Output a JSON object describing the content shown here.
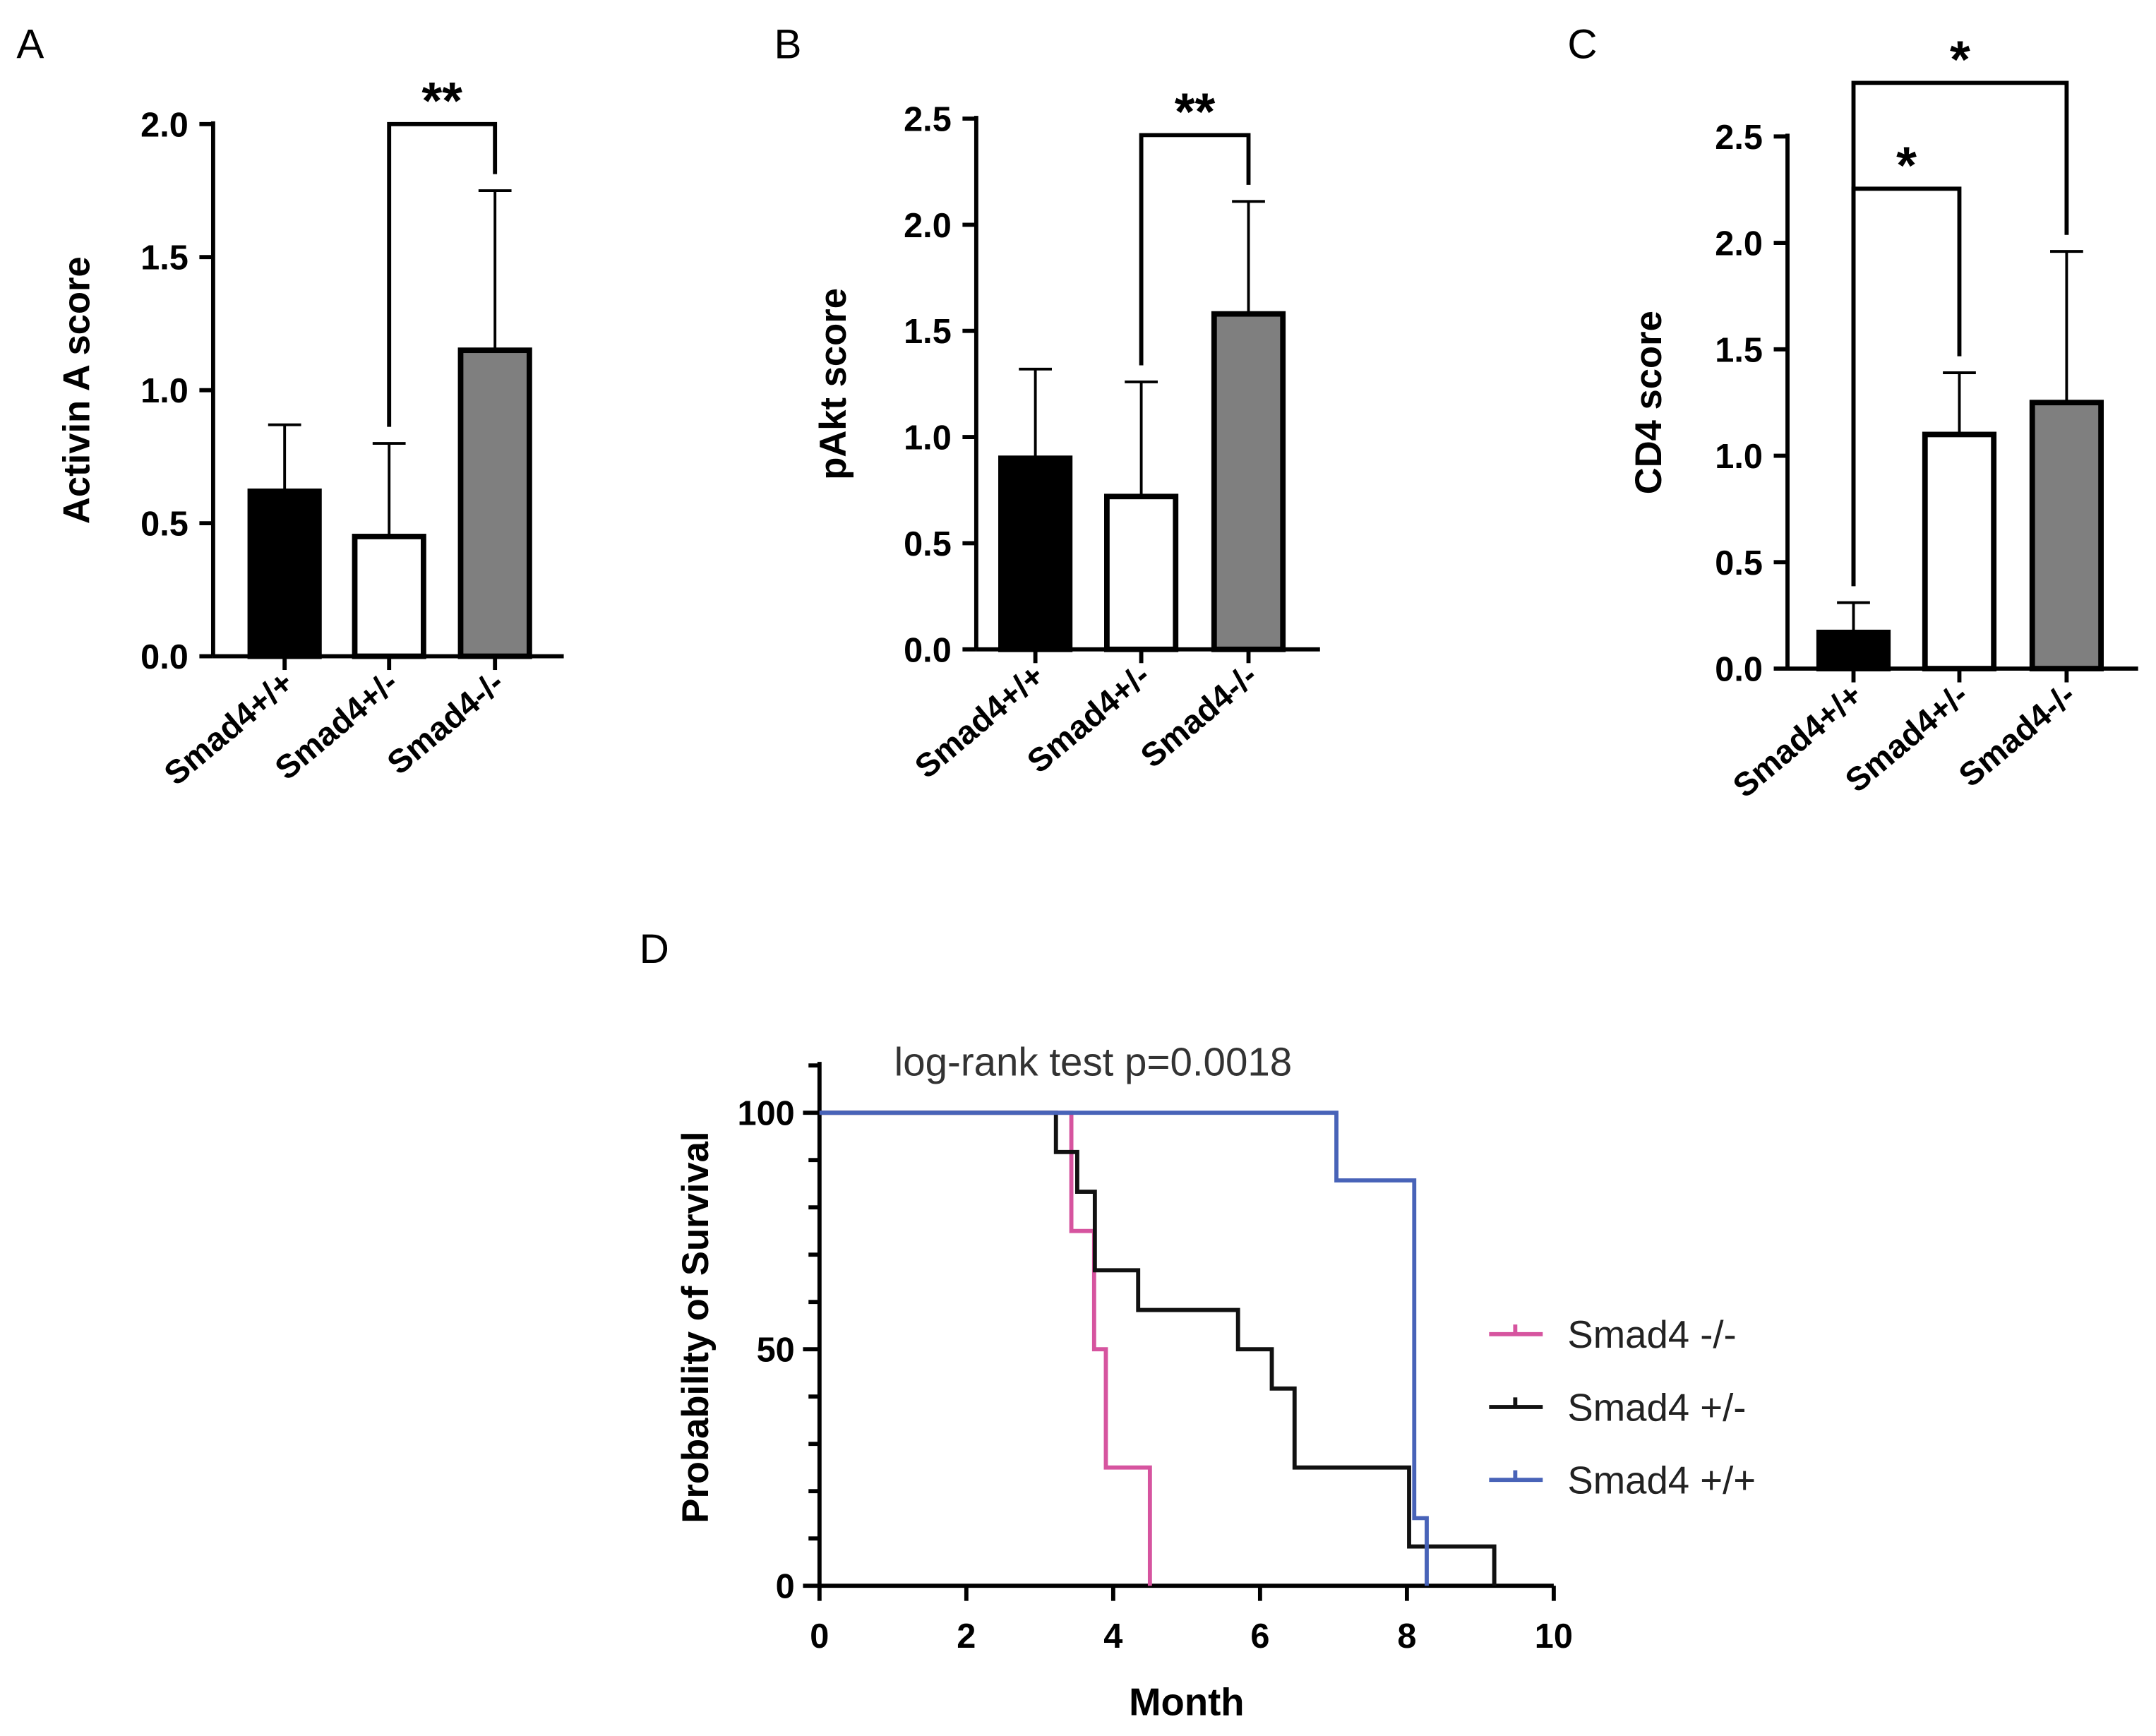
{
  "chart_data": [
    {
      "panel": "A",
      "type": "bar",
      "ylabel": "Activin A score",
      "ylim": [
        0,
        2.0
      ],
      "yticks": [
        0,
        0.5,
        1.0,
        1.5,
        2.0
      ],
      "ytick_labels": [
        "0.0",
        "0.5",
        "1.0",
        "1.5",
        "2.0"
      ],
      "categories": [
        "Smad4+/+",
        "Smad4+/-",
        "Smad4-/-"
      ],
      "values": [
        0.62,
        0.45,
        1.15
      ],
      "error_upper": [
        0.87,
        0.8,
        1.75
      ],
      "fills": [
        "#000000",
        "#ffffff",
        "#7f7f7f"
      ],
      "significance": [
        {
          "from": 1,
          "to": 2,
          "label": "**"
        }
      ]
    },
    {
      "panel": "B",
      "type": "bar",
      "ylabel": "pAkt score",
      "ylim": [
        0,
        2.5
      ],
      "yticks": [
        0,
        0.5,
        1.0,
        1.5,
        2.0,
        2.5
      ],
      "ytick_labels": [
        "0.0",
        "0.5",
        "1.0",
        "1.5",
        "2.0",
        "2.5"
      ],
      "categories": [
        "Smad4+/+",
        "Smad4+/-",
        "Smad4-/-"
      ],
      "values": [
        0.9,
        0.72,
        1.58
      ],
      "error_upper": [
        1.32,
        1.26,
        2.11
      ],
      "fills": [
        "#000000",
        "#ffffff",
        "#7f7f7f"
      ],
      "significance": [
        {
          "from": 1,
          "to": 2,
          "label": "**"
        }
      ]
    },
    {
      "panel": "C",
      "type": "bar",
      "ylabel": "CD4 score",
      "ylim": [
        0,
        2.5
      ],
      "yticks": [
        0,
        0.5,
        1.0,
        1.5,
        2.0,
        2.5
      ],
      "ytick_labels": [
        "0.0",
        "0.5",
        "1.0",
        "1.5",
        "2.0",
        "2.5"
      ],
      "categories": [
        "Smad4+/+",
        "Smad4+/-",
        "Smad4-/-"
      ],
      "values": [
        0.17,
        1.1,
        1.25
      ],
      "error_upper": [
        0.31,
        1.39,
        1.96
      ],
      "fills": [
        "#000000",
        "#ffffff",
        "#7f7f7f"
      ],
      "significance": [
        {
          "from": 0,
          "to": 1,
          "label": "*"
        },
        {
          "from": 0,
          "to": 2,
          "label": "*"
        }
      ]
    },
    {
      "panel": "D",
      "type": "line",
      "subtype": "kaplan-meier step",
      "title": "log-rank test p=0.0018",
      "xlabel": "Month",
      "ylabel": "Probability of Survival",
      "xlim": [
        0,
        10
      ],
      "ylim": [
        0,
        100
      ],
      "xticks": [
        0,
        2,
        4,
        6,
        8,
        10
      ],
      "yticks": [
        0,
        50,
        100
      ],
      "legend_position": "right",
      "series": [
        {
          "name": "Smad4 -/-",
          "color": "#d6549f",
          "x": [
            0,
            3.43,
            3.74,
            3.9,
            4.5
          ],
          "y": [
            100,
            75,
            50,
            25,
            0
          ]
        },
        {
          "name": "Smad4 +/-",
          "color": "#111111",
          "x": [
            0,
            3.22,
            3.51,
            3.75,
            4.34,
            5.7,
            6.16,
            6.47,
            8.03,
            9.19
          ],
          "y": [
            100,
            91.7,
            83.3,
            66.7,
            58.3,
            50,
            41.7,
            25,
            8.3,
            0
          ]
        },
        {
          "name": "Smad4 +/+",
          "color": "#4863b8",
          "x": [
            0,
            7.04,
            8.1,
            8.27
          ],
          "y": [
            100,
            85.7,
            14.3,
            0
          ]
        }
      ]
    }
  ],
  "panel_labels": [
    "A",
    "B",
    "C",
    "D"
  ]
}
